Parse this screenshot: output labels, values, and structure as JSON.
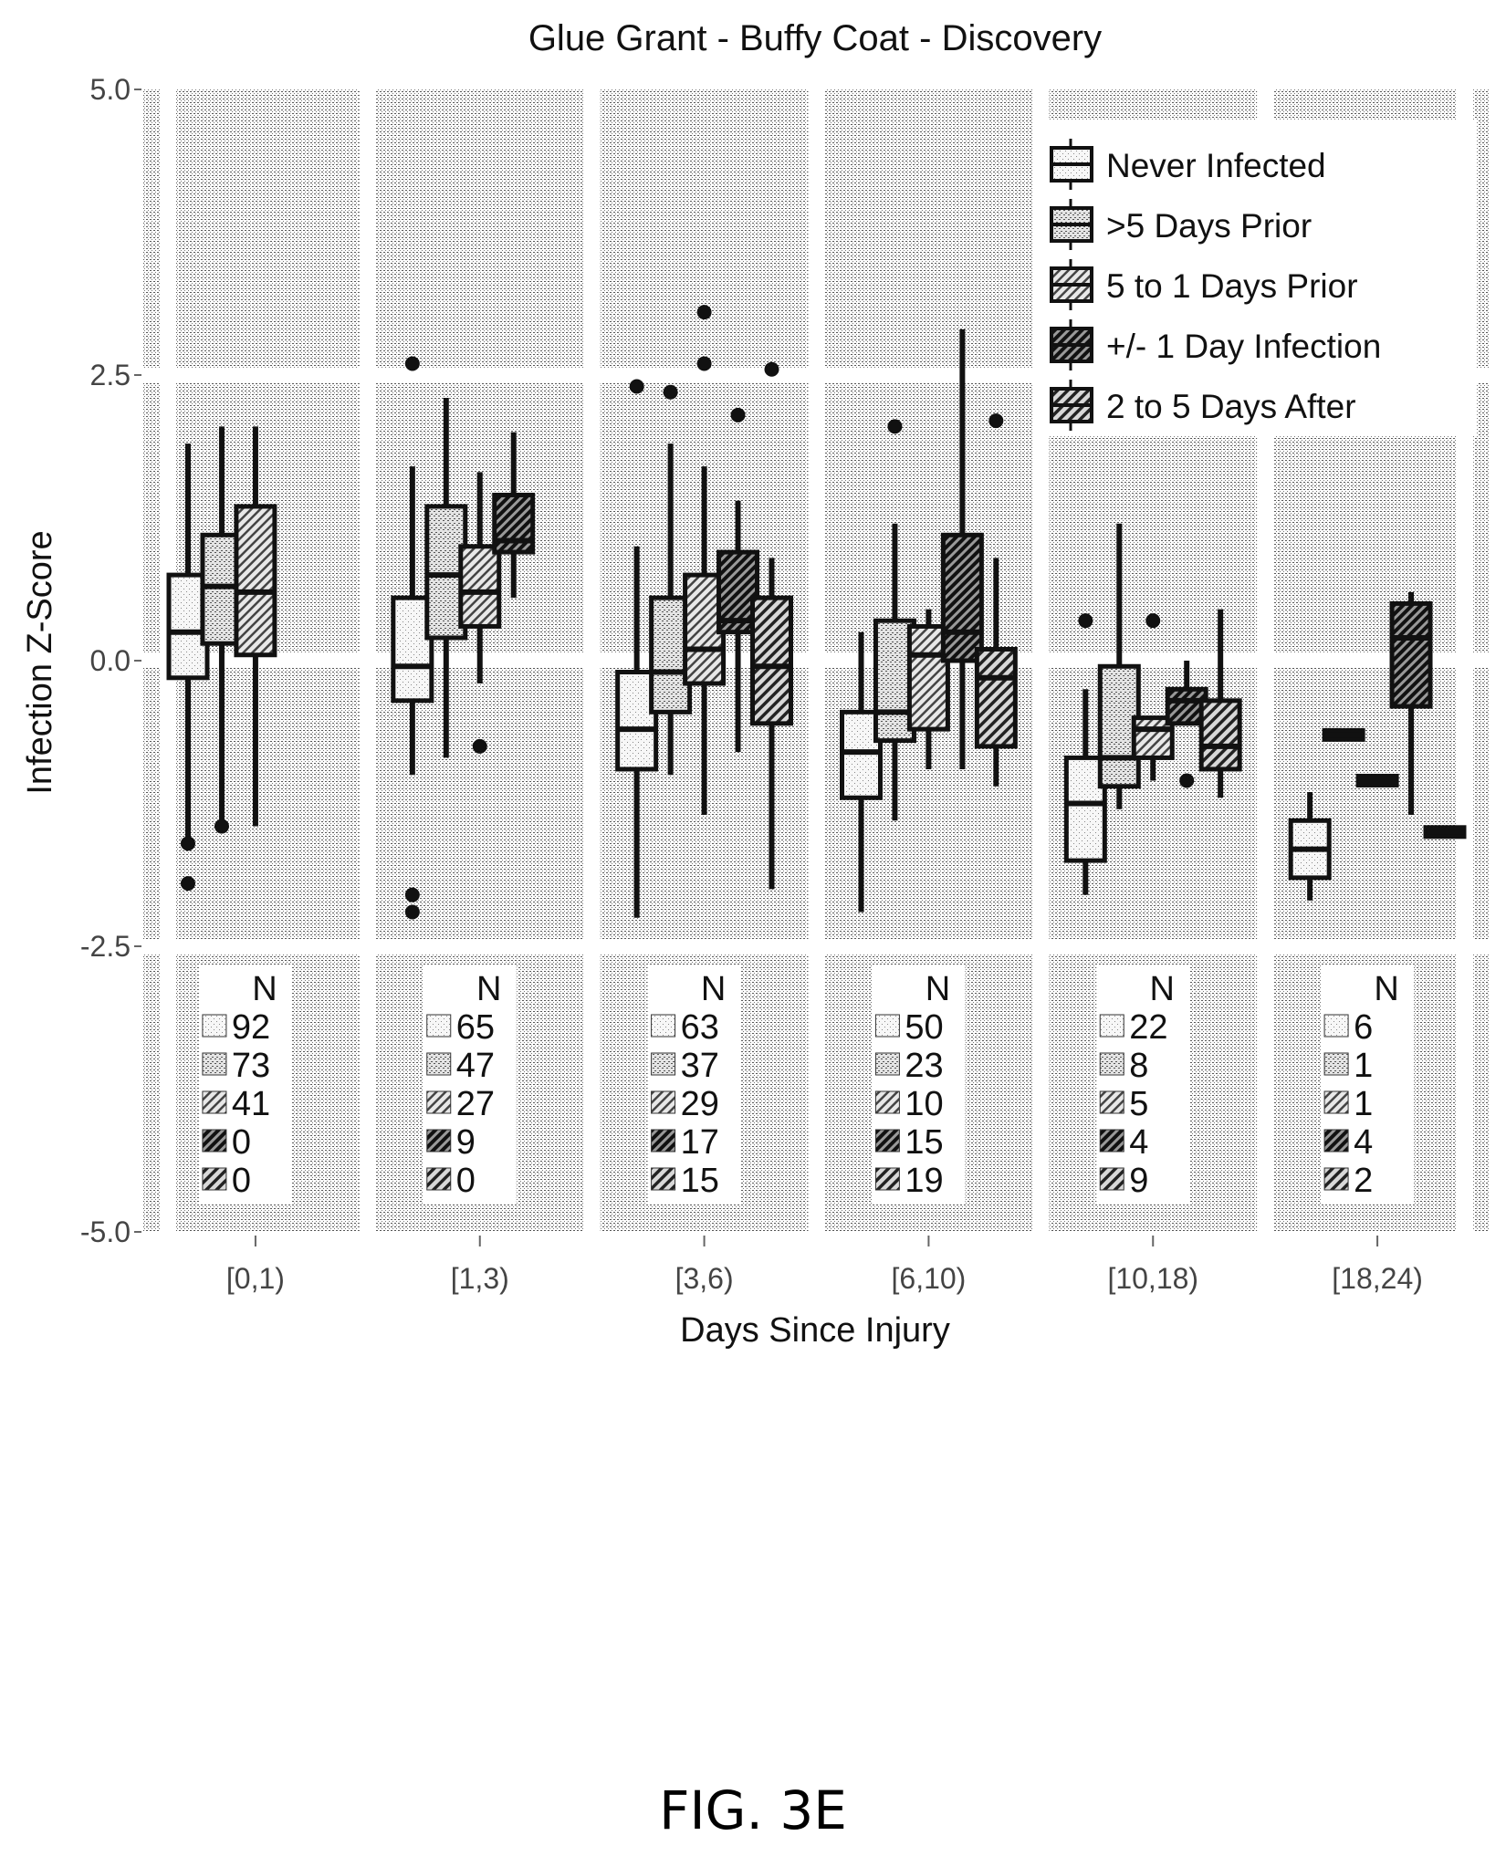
{
  "chart_data": {
    "type": "box",
    "title": "Glue Grant - Buffy Coat - Discovery",
    "xlabel": "Days Since Injury",
    "ylabel": "Infection Z-Score",
    "ylim": [
      -5.0,
      5.0
    ],
    "yticks": [
      "5.0",
      "2.5",
      "0.0",
      "-2.5",
      "-5.0"
    ],
    "ytick_values": [
      5.0,
      2.5,
      0.0,
      -2.5,
      -5.0
    ],
    "grid": true,
    "legend_position": "top-right",
    "categories": [
      "[0,1)",
      "[1,3)",
      "[3,6)",
      "[6,10)",
      "[10,18)",
      "[18,24)"
    ],
    "series_names": [
      "Never Infected",
      ">5 Days Prior",
      "5 to 1 Days Prior",
      "+/- 1 Day Infection",
      "2 to 5 Days After"
    ],
    "n_header": "N",
    "counts": [
      [
        92,
        73,
        41,
        0,
        0
      ],
      [
        65,
        47,
        27,
        9,
        0
      ],
      [
        63,
        37,
        29,
        17,
        15
      ],
      [
        50,
        23,
        10,
        15,
        19
      ],
      [
        22,
        8,
        5,
        4,
        9
      ],
      [
        6,
        1,
        1,
        4,
        2
      ]
    ],
    "boxes": [
      [
        {
          "low": -1.6,
          "q1": -0.15,
          "median": 0.25,
          "q3": 0.75,
          "high": 1.9,
          "outliers": [
            -1.6,
            -1.95
          ]
        },
        {
          "low": -1.4,
          "q1": 0.15,
          "median": 0.65,
          "q3": 1.1,
          "high": 2.05,
          "outliers": [
            -1.45
          ]
        },
        {
          "low": -1.45,
          "q1": 0.05,
          "median": 0.6,
          "q3": 1.35,
          "high": 2.05,
          "outliers": []
        },
        null,
        null
      ],
      [
        {
          "low": -1.0,
          "q1": -0.35,
          "median": -0.05,
          "q3": 0.55,
          "high": 1.7,
          "outliers": [
            2.6,
            -2.05,
            -2.2
          ]
        },
        {
          "low": -0.85,
          "q1": 0.2,
          "median": 0.75,
          "q3": 1.35,
          "high": 2.3,
          "outliers": []
        },
        {
          "low": -0.2,
          "q1": 0.3,
          "median": 0.6,
          "q3": 1.0,
          "high": 1.65,
          "outliers": [
            -0.75
          ]
        },
        {
          "low": 0.55,
          "q1": 0.95,
          "median": 1.05,
          "q3": 1.45,
          "high": 2.0,
          "outliers": []
        },
        null
      ],
      [
        {
          "low": -2.25,
          "q1": -0.95,
          "median": -0.6,
          "q3": -0.1,
          "high": 1.0,
          "outliers": [
            2.4
          ]
        },
        {
          "low": -1.0,
          "q1": -0.45,
          "median": -0.1,
          "q3": 0.55,
          "high": 1.9,
          "outliers": [
            2.35
          ]
        },
        {
          "low": -1.35,
          "q1": -0.2,
          "median": 0.1,
          "q3": 0.75,
          "high": 1.7,
          "outliers": [
            3.05,
            2.6
          ]
        },
        {
          "low": -0.8,
          "q1": 0.25,
          "median": 0.35,
          "q3": 0.95,
          "high": 1.4,
          "outliers": [
            2.15
          ]
        },
        {
          "low": -2.0,
          "q1": -0.55,
          "median": -0.05,
          "q3": 0.55,
          "high": 0.9,
          "outliers": [
            2.55
          ]
        }
      ],
      [
        {
          "low": -2.2,
          "q1": -1.2,
          "median": -0.8,
          "q3": -0.45,
          "high": 0.25,
          "outliers": []
        },
        {
          "low": -1.4,
          "q1": -0.7,
          "median": -0.45,
          "q3": 0.35,
          "high": 1.2,
          "outliers": [
            2.05
          ]
        },
        {
          "low": -0.95,
          "q1": -0.6,
          "median": 0.05,
          "q3": 0.3,
          "high": 0.45,
          "outliers": []
        },
        {
          "low": -0.95,
          "q1": 0.0,
          "median": 0.25,
          "q3": 1.1,
          "high": 2.9,
          "outliers": []
        },
        {
          "low": -1.1,
          "q1": -0.75,
          "median": -0.15,
          "q3": 0.1,
          "high": 0.9,
          "outliers": [
            2.1
          ]
        }
      ],
      [
        {
          "low": -2.05,
          "q1": -1.75,
          "median": -1.25,
          "q3": -0.85,
          "high": -0.25,
          "outliers": [
            0.35
          ]
        },
        {
          "low": -1.3,
          "q1": -1.1,
          "median": -0.85,
          "q3": -0.05,
          "high": 1.2,
          "outliers": []
        },
        {
          "low": -1.05,
          "q1": -0.85,
          "median": -0.6,
          "q3": -0.5,
          "high": -0.5,
          "outliers": [
            0.35
          ]
        },
        {
          "low": -0.55,
          "q1": -0.55,
          "median": -0.35,
          "q3": -0.25,
          "high": 0.0,
          "outliers": [
            -1.05
          ]
        },
        {
          "low": -1.2,
          "q1": -0.95,
          "median": -0.75,
          "q3": -0.35,
          "high": 0.45,
          "outliers": []
        }
      ],
      [
        {
          "low": -2.1,
          "q1": -1.9,
          "median": -1.65,
          "q3": -1.4,
          "high": -1.15,
          "outliers": []
        },
        {
          "low": -0.65,
          "q1": -0.65,
          "median": -0.65,
          "q3": -0.65,
          "high": -0.65,
          "outliers": []
        },
        {
          "low": -1.05,
          "q1": -1.05,
          "median": -1.05,
          "q3": -1.05,
          "high": -1.05,
          "outliers": []
        },
        {
          "low": -1.35,
          "q1": -0.4,
          "median": 0.2,
          "q3": 0.5,
          "high": 0.6,
          "outliers": []
        },
        {
          "low": -1.5,
          "q1": -1.5,
          "median": -1.5,
          "q3": -1.5,
          "high": -1.5,
          "outliers": []
        }
      ]
    ]
  },
  "caption": "FIG. 3E",
  "colors": {
    "panel_bg": "#d6d6d6",
    "grid": "#ffffff",
    "ink": "#111111",
    "series_fill": [
      "#f2f2f2",
      "#d0d0d0",
      "#a8a8a8",
      "#6e6e6e",
      "#8a8a8a"
    ]
  }
}
